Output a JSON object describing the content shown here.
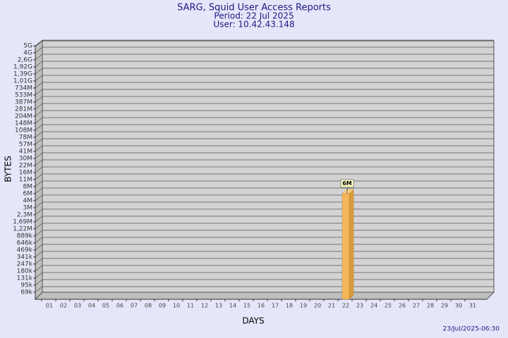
{
  "chart_data": {
    "type": "bar",
    "title": "SARG, Squid User Access Reports",
    "subtitle": [
      "Period: 22 Jul 2025",
      "User: 10.42.43.148"
    ],
    "x_label": "DAYS",
    "y_label": "BYTES",
    "footer": "23/Jul/2025-06:30",
    "categories": [
      "01",
      "02",
      "03",
      "04",
      "05",
      "06",
      "07",
      "08",
      "09",
      "10",
      "11",
      "12",
      "13",
      "14",
      "15",
      "16",
      "17",
      "18",
      "19",
      "20",
      "21",
      "22",
      "23",
      "24",
      "25",
      "26",
      "27",
      "28",
      "29",
      "30",
      "31"
    ],
    "values": [
      null,
      null,
      null,
      null,
      null,
      null,
      null,
      null,
      null,
      null,
      null,
      null,
      null,
      null,
      null,
      null,
      null,
      null,
      null,
      null,
      null,
      6000000,
      null,
      null,
      null,
      null,
      null,
      null,
      null,
      null,
      null
    ],
    "value_labels": [
      null,
      null,
      null,
      null,
      null,
      null,
      null,
      null,
      null,
      null,
      null,
      null,
      null,
      null,
      null,
      null,
      null,
      null,
      null,
      null,
      null,
      "6M",
      null,
      null,
      null,
      null,
      null,
      null,
      null,
      null,
      null
    ],
    "color": "#f5b75a",
    "ylim": [
      50000,
      5000000000
    ],
    "yticks": [
      {
        "value": 69000,
        "label": "69k"
      },
      {
        "value": 95000,
        "label": "95k"
      },
      {
        "value": 131000,
        "label": "131k"
      },
      {
        "value": 180000,
        "label": "180k"
      },
      {
        "value": 247000,
        "label": "247k"
      },
      {
        "value": 341000,
        "label": "341k"
      },
      {
        "value": 469000,
        "label": "469k"
      },
      {
        "value": 646000,
        "label": "646k"
      },
      {
        "value": 889000,
        "label": "889k"
      },
      {
        "value": 1220000,
        "label": "1,22M"
      },
      {
        "value": 1690000,
        "label": "1,69M"
      },
      {
        "value": 2300000,
        "label": "2,3M"
      },
      {
        "value": 3000000,
        "label": "3M"
      },
      {
        "value": 4000000,
        "label": "4M"
      },
      {
        "value": 6000000,
        "label": "6M"
      },
      {
        "value": 8000000,
        "label": "8M"
      },
      {
        "value": 11000000,
        "label": "11M"
      },
      {
        "value": 16000000,
        "label": "16M"
      },
      {
        "value": 22000000,
        "label": "22M"
      },
      {
        "value": 30000000,
        "label": "30M"
      },
      {
        "value": 41000000,
        "label": "41M"
      },
      {
        "value": 57000000,
        "label": "57M"
      },
      {
        "value": 78000000,
        "label": "78M"
      },
      {
        "value": 108000000,
        "label": "108M"
      },
      {
        "value": 148000000,
        "label": "148M"
      },
      {
        "value": 204000000,
        "label": "204M"
      },
      {
        "value": 281000000,
        "label": "281M"
      },
      {
        "value": 387000000,
        "label": "387M"
      },
      {
        "value": 533000000,
        "label": "533M"
      },
      {
        "value": 734000000,
        "label": "734M"
      },
      {
        "value": 1010000000,
        "label": "1,01G"
      },
      {
        "value": 1390000000,
        "label": "1,39G"
      },
      {
        "value": 1920000000,
        "label": "1,92G"
      },
      {
        "value": 2600000000,
        "label": "2,6G"
      },
      {
        "value": 4000000000,
        "label": "4G"
      },
      {
        "value": 5000000000,
        "label": "5G"
      }
    ],
    "grid": true
  }
}
